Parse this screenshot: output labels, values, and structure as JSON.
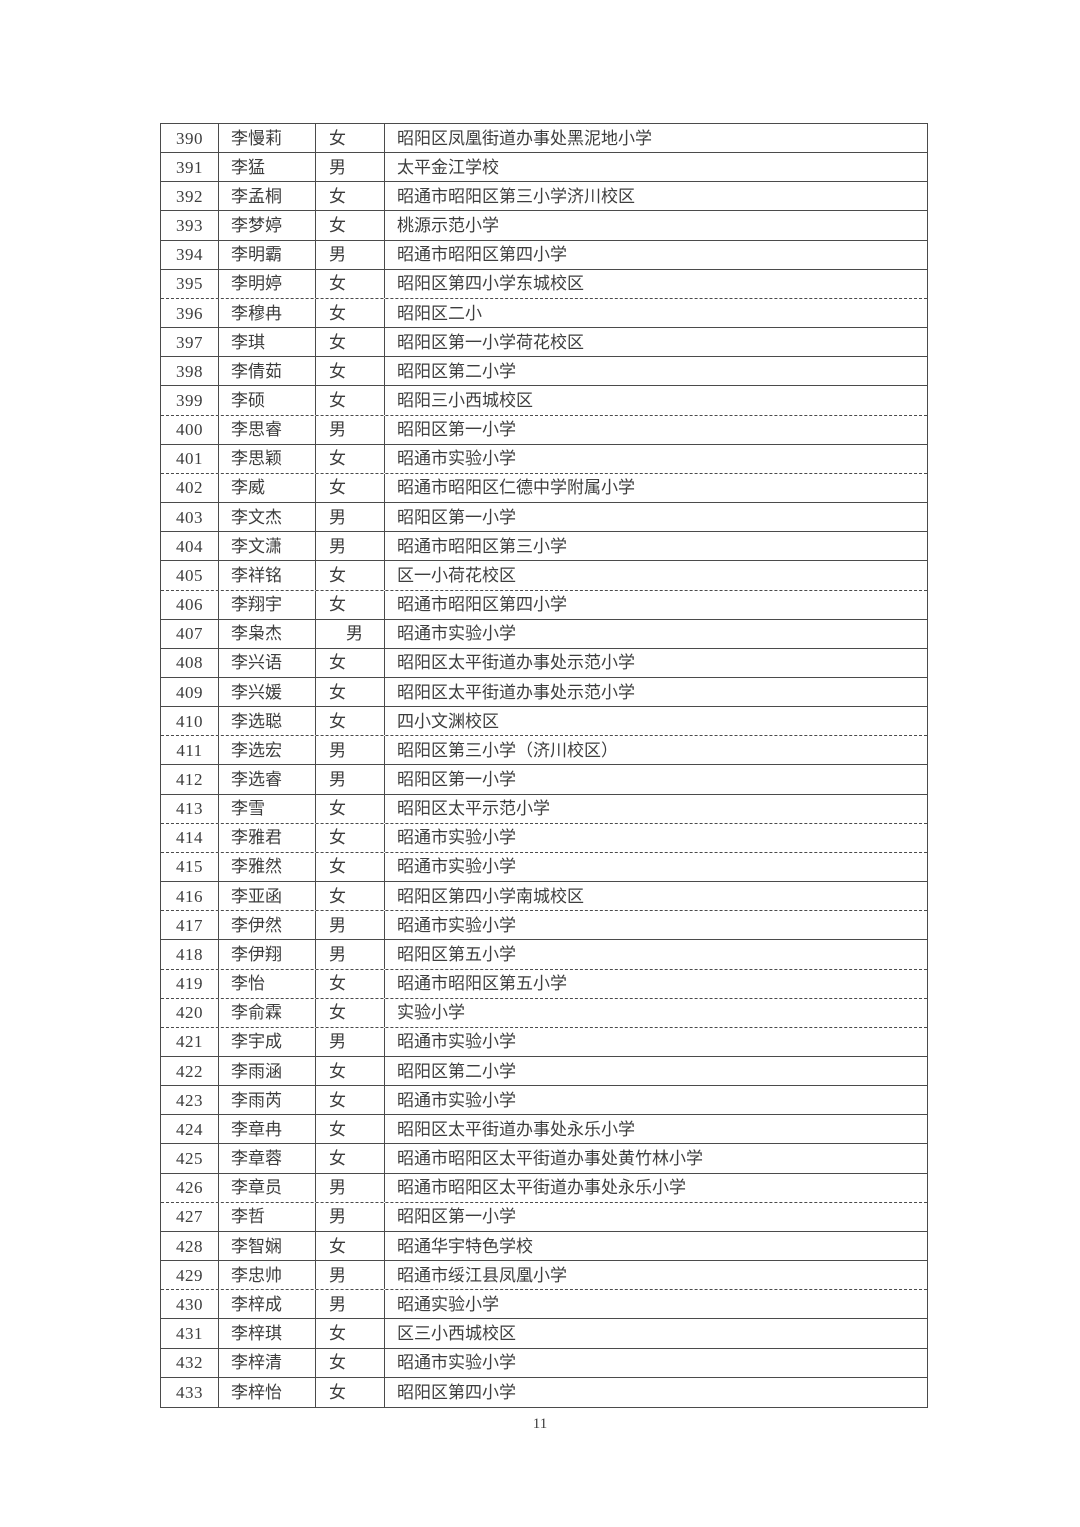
{
  "document": {
    "page_number": "11"
  },
  "rows": [
    {
      "no": "390",
      "name": "李慢莉",
      "gender": "女",
      "school": "昭阳区凤凰街道办事处黑泥地小学",
      "divider": "solid"
    },
    {
      "no": "391",
      "name": "李猛",
      "gender": "男",
      "school": "太平金江学校",
      "divider": "solid"
    },
    {
      "no": "392",
      "name": "李孟桐",
      "gender": "女",
      "school": "昭通市昭阳区第三小学济川校区",
      "divider": "solid"
    },
    {
      "no": "393",
      "name": "李梦婷",
      "gender": "女",
      "school": "桃源示范小学",
      "divider": "solid"
    },
    {
      "no": "394",
      "name": "李明霸",
      "gender": "男",
      "school": "昭通市昭阳区第四小学",
      "divider": "solid"
    },
    {
      "no": "395",
      "name": "李明婷",
      "gender": "女",
      "school": "昭阳区第四小学东城校区",
      "divider": "dashed"
    },
    {
      "no": "396",
      "name": "李穆冉",
      "gender": "女",
      "school": "昭阳区二小",
      "divider": "solid"
    },
    {
      "no": "397",
      "name": "李琪",
      "gender": "女",
      "school": "昭阳区第一小学荷花校区",
      "divider": "solid"
    },
    {
      "no": "398",
      "name": "李倩茹",
      "gender": "女",
      "school": "昭阳区第二小学",
      "divider": "solid"
    },
    {
      "no": "399",
      "name": "李硕",
      "gender": "女",
      "school": "昭阳三小西城校区",
      "divider": "dashed"
    },
    {
      "no": "400",
      "name": "李思睿",
      "gender": "男",
      "school": "昭阳区第一小学",
      "divider": "solid"
    },
    {
      "no": "401",
      "name": "李思颖",
      "gender": "女",
      "school": "昭通市实验小学",
      "divider": "dashed"
    },
    {
      "no": "402",
      "name": "李威",
      "gender": "女",
      "school": "昭通市昭阳区仁德中学附属小学",
      "divider": "solid"
    },
    {
      "no": "403",
      "name": "李文杰",
      "gender": "男",
      "school": "昭阳区第一小学",
      "divider": "solid"
    },
    {
      "no": "404",
      "name": "李文潇",
      "gender": "男",
      "school": "昭通市昭阳区第三小学",
      "divider": "solid"
    },
    {
      "no": "405",
      "name": "李祥铭",
      "gender": "女",
      "school": "区一小荷花校区",
      "divider": "dashed"
    },
    {
      "no": "406",
      "name": "李翔宇",
      "gender": "女",
      "school": "昭通市昭阳区第四小学",
      "divider": "solid"
    },
    {
      "no": "407",
      "name": "李枭杰",
      "gender": "　男",
      "school": "昭通市实验小学",
      "divider": "solid"
    },
    {
      "no": "408",
      "name": "李兴语",
      "gender": "女",
      "school": "昭阳区太平街道办事处示范小学",
      "divider": "solid"
    },
    {
      "no": "409",
      "name": "李兴媛",
      "gender": "女",
      "school": "昭阳区太平街道办事处示范小学",
      "divider": "solid"
    },
    {
      "no": "410",
      "name": "李选聪",
      "gender": "女",
      "school": "四小文渊校区",
      "divider": "dashed"
    },
    {
      "no": "411",
      "name": "李选宏",
      "gender": "男",
      "school": "昭阳区第三小学（济川校区）",
      "divider": "solid"
    },
    {
      "no": "412",
      "name": "李选睿",
      "gender": "男",
      "school": "昭阳区第一小学",
      "divider": "solid"
    },
    {
      "no": "413",
      "name": "李雪",
      "gender": "女",
      "school": "昭阳区太平示范小学",
      "divider": "dashed"
    },
    {
      "no": "414",
      "name": "李雅君",
      "gender": "女",
      "school": "昭通市实验小学",
      "divider": "dashed"
    },
    {
      "no": "415",
      "name": "李雅然",
      "gender": "女",
      "school": "昭通市实验小学",
      "divider": "solid"
    },
    {
      "no": "416",
      "name": "李亚函",
      "gender": "女",
      "school": "昭阳区第四小学南城校区",
      "divider": "dashed"
    },
    {
      "no": "417",
      "name": "李伊然",
      "gender": "男",
      "school": "昭通市实验小学",
      "divider": "solid"
    },
    {
      "no": "418",
      "name": "李伊翔",
      "gender": "男",
      "school": "昭阳区第五小学",
      "divider": "dashed"
    },
    {
      "no": "419",
      "name": "李怡",
      "gender": "女",
      "school": "昭通市昭阳区第五小学",
      "divider": "dashed"
    },
    {
      "no": "420",
      "name": "李俞霖",
      "gender": "女",
      "school": "实验小学",
      "divider": "dashed"
    },
    {
      "no": "421",
      "name": "李宇成",
      "gender": "男",
      "school": "昭通市实验小学",
      "divider": "solid"
    },
    {
      "no": "422",
      "name": "李雨涵",
      "gender": "女",
      "school": "昭阳区第二小学",
      "divider": "solid"
    },
    {
      "no": "423",
      "name": "李雨芮",
      "gender": "女",
      "school": "昭通市实验小学",
      "divider": "solid"
    },
    {
      "no": "424",
      "name": "李章冉",
      "gender": "女",
      "school": "昭阳区太平街道办事处永乐小学",
      "divider": "solid"
    },
    {
      "no": "425",
      "name": "李章蓉",
      "gender": "女",
      "school": "昭通市昭阳区太平街道办事处黄竹林小学",
      "divider": "solid"
    },
    {
      "no": "426",
      "name": "李章员",
      "gender": "男",
      "school": "昭通市昭阳区太平街道办事处永乐小学",
      "divider": "dashed"
    },
    {
      "no": "427",
      "name": "李哲",
      "gender": "男",
      "school": "昭阳区第一小学",
      "divider": "solid"
    },
    {
      "no": "428",
      "name": "李智娴",
      "gender": "女",
      "school": "昭通华宇特色学校",
      "divider": "solid"
    },
    {
      "no": "429",
      "name": "李忠帅",
      "gender": "男",
      "school": "昭通市绥江县凤凰小学",
      "divider": "dashed"
    },
    {
      "no": "430",
      "name": "李梓成",
      "gender": "男",
      "school": "昭通实验小学",
      "divider": "solid"
    },
    {
      "no": "431",
      "name": "李梓琪",
      "gender": "女",
      "school": "区三小西城校区",
      "divider": "solid"
    },
    {
      "no": "432",
      "name": "李梓清",
      "gender": "女",
      "school": "昭通市实验小学",
      "divider": "solid"
    },
    {
      "no": "433",
      "name": "李梓怡",
      "gender": "女",
      "school": "昭阳区第四小学",
      "divider": "solid"
    }
  ]
}
